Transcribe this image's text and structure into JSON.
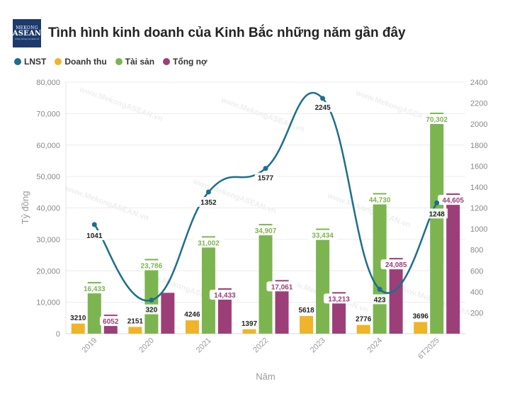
{
  "header": {
    "logo_line1": "MEKONG",
    "logo_line2": "ASEAN",
    "logo_line3": "Cổng thông tin kinh tế",
    "title": "Tình hình kinh doanh của Kinh Bắc những năm gần đây"
  },
  "watermark": "www.MekongASEAN.vn",
  "colors": {
    "lnst": "#1c6e8c",
    "doanh_thu": "#f0b429",
    "tai_san": "#7cb550",
    "tong_no": "#9c3f78"
  },
  "chart_data": {
    "type": "bar",
    "categories": [
      "2019",
      "2020",
      "2021",
      "2022",
      "2023",
      "2024",
      "6T2025"
    ],
    "xlabel": "Năm",
    "ylabel": "Tỷ đồng",
    "ylim": [
      0,
      80000
    ],
    "y2lim": [
      0,
      2400
    ],
    "yticks": [
      "0",
      "10,000",
      "20,000",
      "30,000",
      "40,000",
      "50,000",
      "60,000",
      "70,000",
      "80,000"
    ],
    "y2ticks": [
      "200",
      "400",
      "600",
      "800",
      "1000",
      "1200",
      "1400",
      "1600",
      "1800",
      "2000",
      "2200",
      "2400"
    ],
    "series": [
      {
        "name": "LNST",
        "type": "line",
        "axis": "right",
        "values": [
          1041,
          320,
          1352,
          1577,
          2245,
          423,
          1248
        ],
        "labels": [
          "1041",
          "320",
          "1352",
          "1577",
          "2245",
          "423",
          "1248"
        ]
      },
      {
        "name": "Doanh thu",
        "type": "bar",
        "values": [
          3210,
          2151,
          4246,
          1397,
          5618,
          2776,
          3696
        ],
        "labels": [
          "3210",
          "2151",
          "4246",
          "1397",
          "5618",
          "2776",
          "3696"
        ]
      },
      {
        "name": "Tài sản",
        "type": "bar",
        "values": [
          16433,
          23786,
          31002,
          34907,
          33434,
          44730,
          70302
        ],
        "labels": [
          "16,433",
          "23,786",
          "31,002",
          "34,907",
          "33,434",
          "44,730",
          "70,302"
        ]
      },
      {
        "name": "Tổng nợ",
        "type": "bar",
        "values": [
          6052,
          13000,
          14433,
          17061,
          13213,
          24085,
          44605
        ],
        "labels": [
          "6052",
          "",
          "14,433",
          "17,061",
          "13,213",
          "24,085",
          "44,605"
        ]
      }
    ],
    "grid": true,
    "legend": "top-left"
  }
}
